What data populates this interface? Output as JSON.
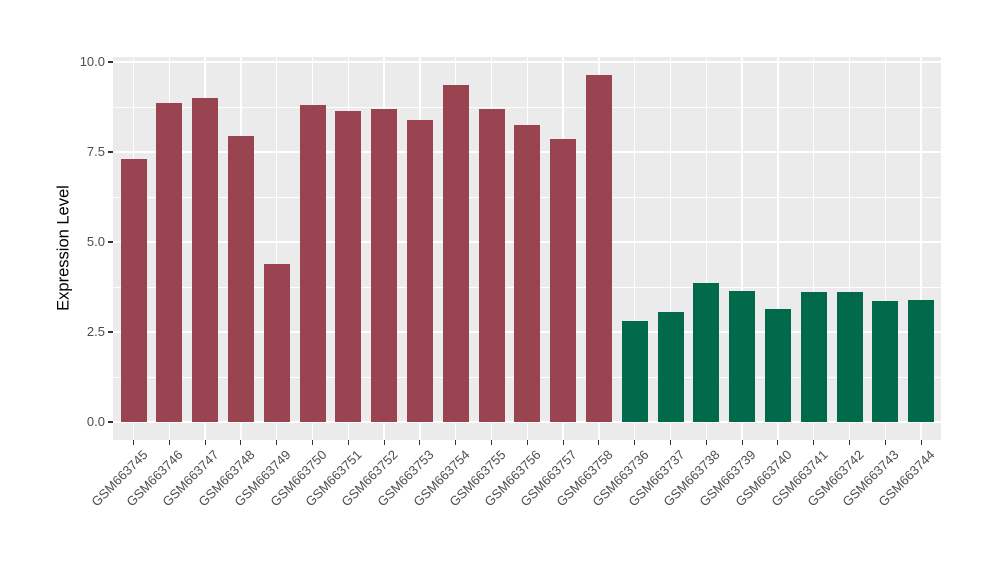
{
  "chart_data": {
    "type": "bar",
    "title": "",
    "xlabel": "",
    "ylabel": "Expression Level",
    "categories": [
      "GSM663745",
      "GSM663746",
      "GSM663747",
      "GSM663748",
      "GSM663749",
      "GSM663750",
      "GSM663751",
      "GSM663752",
      "GSM663753",
      "GSM663754",
      "GSM663755",
      "GSM663756",
      "GSM663757",
      "GSM663758",
      "GSM663736",
      "GSM663737",
      "GSM663738",
      "GSM663739",
      "GSM663740",
      "GSM663741",
      "GSM663742",
      "GSM663743",
      "GSM663744"
    ],
    "values": [
      7.3,
      8.85,
      9.0,
      7.95,
      4.4,
      8.8,
      8.65,
      8.7,
      8.4,
      9.35,
      8.7,
      8.25,
      7.85,
      9.65,
      2.8,
      3.05,
      3.85,
      3.65,
      3.15,
      3.6,
      3.6,
      3.35,
      3.4
    ],
    "group_index": [
      0,
      0,
      0,
      0,
      0,
      0,
      0,
      0,
      0,
      0,
      0,
      0,
      0,
      0,
      1,
      1,
      1,
      1,
      1,
      1,
      1,
      1,
      1
    ],
    "group_colors": [
      "#9A4452",
      "#006A4B"
    ],
    "ylim": [
      -0.5,
      10.14
    ],
    "yticks_major": [
      0,
      2.5,
      5,
      7.5,
      10
    ],
    "ytick_labels": [
      "0.0",
      "2.5",
      "5.0",
      "7.5",
      "10.0"
    ],
    "yticks_minor": [
      1.25,
      3.75,
      6.25,
      8.75
    ],
    "grid": true,
    "legend_position": "none",
    "panel_background": "#EBEBEB",
    "grid_color": "#FFFFFF",
    "tick_color": "#333333",
    "tick_label_color": "#4D4D4D",
    "axis_title_color": "#000000"
  }
}
